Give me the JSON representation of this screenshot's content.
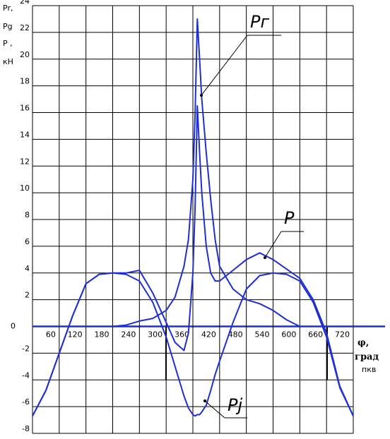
{
  "chart_data": {
    "type": "line",
    "ylabel": [
      "Pr,",
      "Pg",
      "P ,",
      "кН"
    ],
    "xlabel": [
      "φ,",
      "град",
      "пкв"
    ],
    "x": [
      0,
      30,
      60,
      90,
      120,
      150,
      180,
      210,
      240,
      270,
      300,
      320,
      340,
      350,
      360,
      365,
      370,
      375,
      380,
      390,
      400,
      410,
      420,
      450,
      480,
      510,
      540,
      570,
      600,
      630,
      660,
      690,
      720
    ],
    "series": [
      {
        "name": "Pг",
        "color": "#1f2fd0",
        "values": [
          0,
          0,
          0,
          0,
          0,
          0,
          0,
          0.1,
          0.4,
          0.6,
          1.2,
          2.2,
          4.5,
          6.5,
          11,
          16,
          23,
          20,
          17,
          13,
          9.5,
          6.5,
          4.5,
          2.8,
          2,
          1.7,
          1.2,
          0.5,
          0,
          0,
          0,
          0,
          0
        ]
      },
      {
        "name": "P",
        "color": "#1f2fd0",
        "values": [
          -6.7,
          -4.8,
          -2,
          0.8,
          3.2,
          3.9,
          4,
          4,
          4.2,
          2.5,
          0.3,
          -1.2,
          -1.8,
          -0.5,
          4,
          9,
          16.5,
          13,
          10,
          6,
          4,
          3.4,
          3.4,
          4.2,
          5,
          5.5,
          5,
          4.3,
          3.6,
          2,
          -0.5,
          -4.5,
          -6.7
        ]
      },
      {
        "name": "Pj",
        "color": "#1f2fd0",
        "values": [
          -6.7,
          -4.8,
          -2,
          0.8,
          3.2,
          3.9,
          4,
          3.9,
          3.4,
          1.8,
          -0.8,
          -3,
          -5.2,
          -6.1,
          -6.6,
          -6.7,
          -6.6,
          -6.6,
          -6.4,
          -5.9,
          -4.8,
          -3.6,
          -2.6,
          0.3,
          2.8,
          3.8,
          4,
          3.9,
          3.4,
          1.8,
          -0.8,
          -4.6,
          -6.7
        ]
      }
    ],
    "xlim": [
      0,
      720
    ],
    "xticks": [
      60,
      120,
      180,
      240,
      300,
      360,
      420,
      480,
      540,
      600,
      660,
      720
    ],
    "ylim": [
      -8,
      24
    ],
    "yticks": [
      24,
      22,
      20,
      18,
      16,
      14,
      12,
      10,
      8,
      6,
      4,
      2,
      0,
      -2,
      -4,
      -6,
      -8
    ],
    "grid": true
  }
}
